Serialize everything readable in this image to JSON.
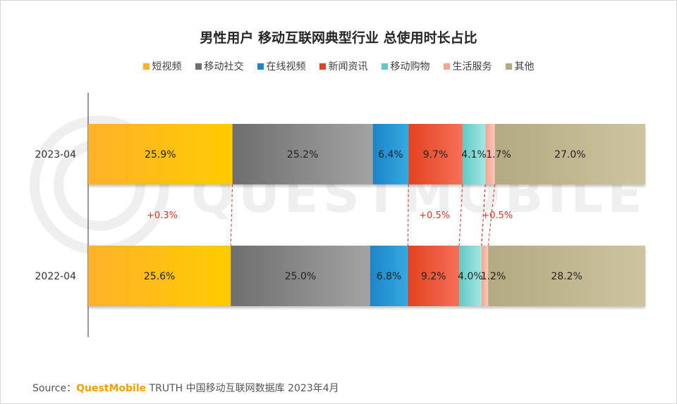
{
  "colors": {
    "短视频": [
      "#ffb12a",
      "#ffcc00"
    ],
    "移动社交": [
      "#6e6e6e",
      "#a3a3a3"
    ],
    "在线视频": [
      "#1d85c9",
      "#35a9e0"
    ],
    "新闻资讯": [
      "#e3421f",
      "#f57058"
    ],
    "移动购物": [
      "#60c9c5",
      "#a6e6e3"
    ],
    "生活服务": [
      "#f5a592",
      "#fbc8b8"
    ],
    "其他": [
      "#b3a982",
      "#cdc5a0"
    ],
    "connector": "#e0332b",
    "diff_text": "#e0332b"
  },
  "chart_data": {
    "type": "bar",
    "orientation": "horizontal",
    "stacked": true,
    "normalized": true,
    "title": "男性用户 移动互联网典型行业 总使用时长占比",
    "xlabel": "",
    "ylabel": "",
    "categories": [
      "2023-04",
      "2022-04"
    ],
    "series": [
      {
        "name": "短视频",
        "values": [
          25.9,
          25.6
        ]
      },
      {
        "name": "移动社交",
        "values": [
          25.2,
          25.0
        ]
      },
      {
        "name": "在线视频",
        "values": [
          6.4,
          6.8
        ]
      },
      {
        "name": "新闻资讯",
        "values": [
          9.7,
          9.2
        ]
      },
      {
        "name": "移动购物",
        "values": [
          4.1,
          4.0
        ]
      },
      {
        "name": "生活服务",
        "values": [
          1.7,
          1.2
        ]
      },
      {
        "name": "其他",
        "values": [
          27.0,
          28.2
        ]
      }
    ],
    "data_labels": [
      [
        "25.9%",
        "25.2%",
        "6.4%",
        "9.7%",
        "4.1%",
        "1.7%",
        "27.0%"
      ],
      [
        "25.6%",
        "25.0%",
        "6.8%",
        "9.2%",
        "4.0%",
        "1.2%",
        "28.2%"
      ]
    ],
    "legend_position": "top",
    "grid": false,
    "annotations": [
      {
        "series": "短视频",
        "text": "+0.3%"
      },
      {
        "series": "新闻资讯",
        "text": "+0.5%"
      },
      {
        "series": "生活服务",
        "text": "+0.5%"
      }
    ]
  },
  "footer": {
    "source_label": "Source：",
    "brand": "QuestMobile",
    "source_text": " TRUTH 中国移动互联网数据库 2023年4月"
  },
  "watermark": "QUESTMOBILE"
}
